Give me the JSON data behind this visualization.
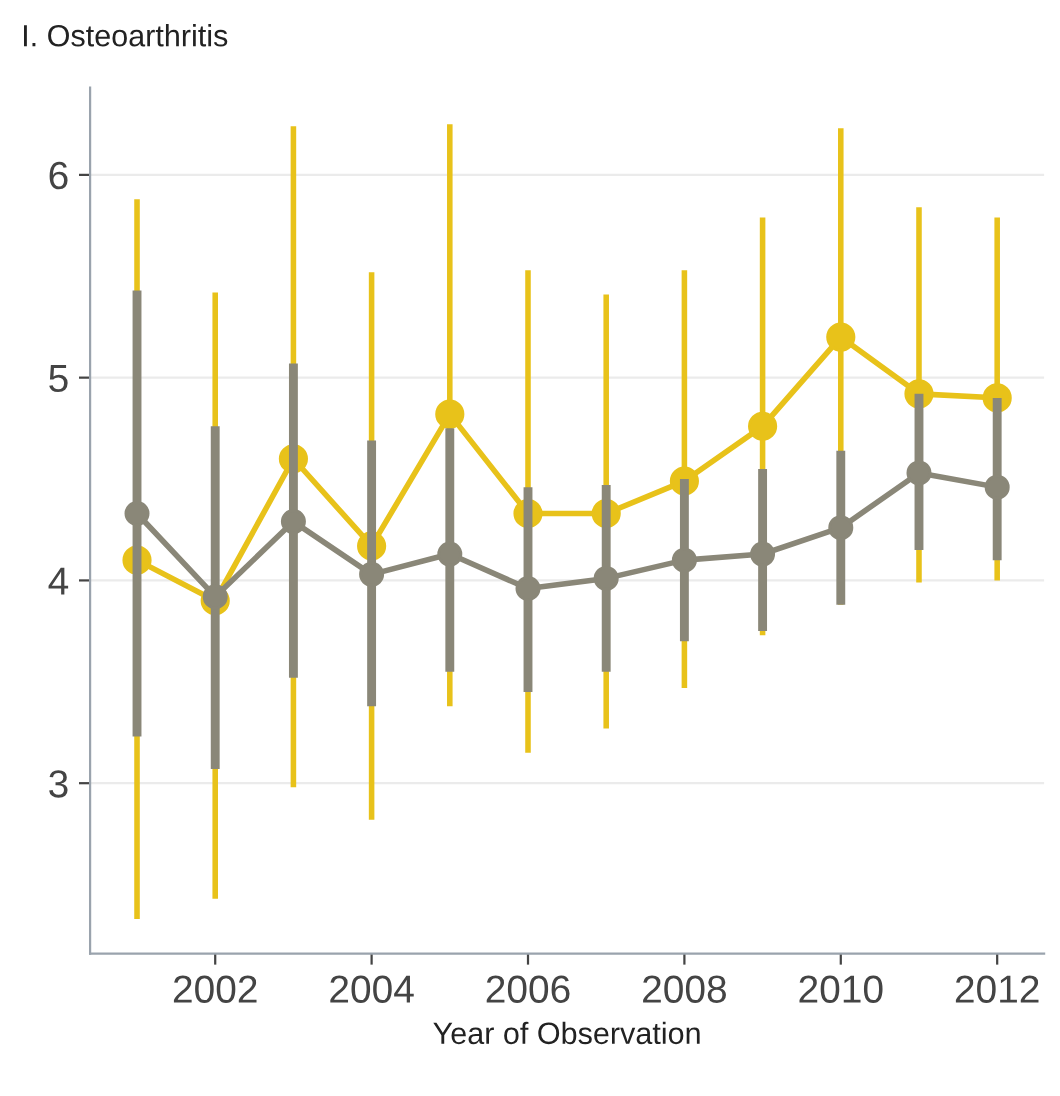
{
  "chart_data": {
    "type": "line",
    "title": "I. Osteoarthritis",
    "xlabel": "Year of Observation",
    "x": [
      2001,
      2002,
      2003,
      2004,
      2005,
      2006,
      2007,
      2008,
      2009,
      2010,
      2011,
      2012
    ],
    "series": [
      {
        "color": "#e8c21a",
        "values": [
          4.1,
          3.9,
          4.6,
          4.17,
          4.82,
          4.33,
          4.33,
          4.49,
          4.76,
          5.2,
          4.92,
          4.9
        ],
        "errors": [
          [
            2.33,
            5.88
          ],
          [
            2.43,
            5.42
          ],
          [
            2.98,
            6.24
          ],
          [
            2.82,
            5.52
          ],
          [
            3.38,
            6.25
          ],
          [
            3.15,
            5.53
          ],
          [
            3.27,
            5.41
          ],
          [
            3.47,
            5.53
          ],
          [
            3.73,
            5.79
          ],
          [
            3.88,
            6.23
          ],
          [
            3.99,
            5.84
          ],
          [
            4.0,
            5.79
          ]
        ]
      },
      {
        "color": "#8a8778",
        "values": [
          4.33,
          3.92,
          4.29,
          4.03,
          4.13,
          3.96,
          4.01,
          4.1,
          4.13,
          4.26,
          4.53,
          4.46
        ],
        "errors": [
          [
            3.23,
            5.43
          ],
          [
            3.07,
            4.76
          ],
          [
            3.52,
            5.07
          ],
          [
            3.38,
            4.69
          ],
          [
            3.55,
            4.75
          ],
          [
            3.45,
            4.46
          ],
          [
            3.55,
            4.47
          ],
          [
            3.7,
            4.5
          ],
          [
            3.75,
            4.55
          ],
          [
            3.88,
            4.64
          ],
          [
            4.15,
            4.92
          ],
          [
            4.1,
            4.9
          ]
        ]
      }
    ],
    "xlim": [
      2000.4,
      2012.6
    ],
    "xticks": [
      2002,
      2004,
      2006,
      2008,
      2010,
      2012
    ],
    "ylim": [
      2.16,
      6.43
    ],
    "yticks": [
      3,
      4,
      5,
      6
    ],
    "grid": "y",
    "marker": "circle",
    "line_style": "solid",
    "legend": false
  }
}
